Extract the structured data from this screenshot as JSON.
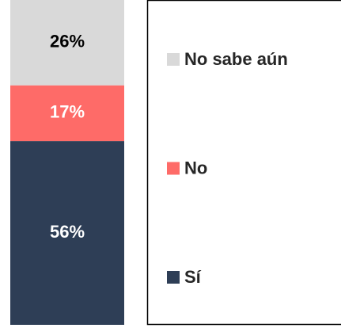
{
  "chart_data": {
    "type": "bar",
    "stacked": true,
    "series": [
      {
        "name": "Sí",
        "color": "#2e3e56",
        "values": [
          56
        ],
        "value_labels": [
          "56%"
        ]
      },
      {
        "name": "No",
        "color": "#fe6b68",
        "values": [
          17
        ],
        "value_labels": [
          "17%"
        ]
      },
      {
        "name": "No sabe aún",
        "color": "#d9d9d9",
        "values": [
          26
        ],
        "value_labels": [
          "26%"
        ]
      }
    ]
  }
}
